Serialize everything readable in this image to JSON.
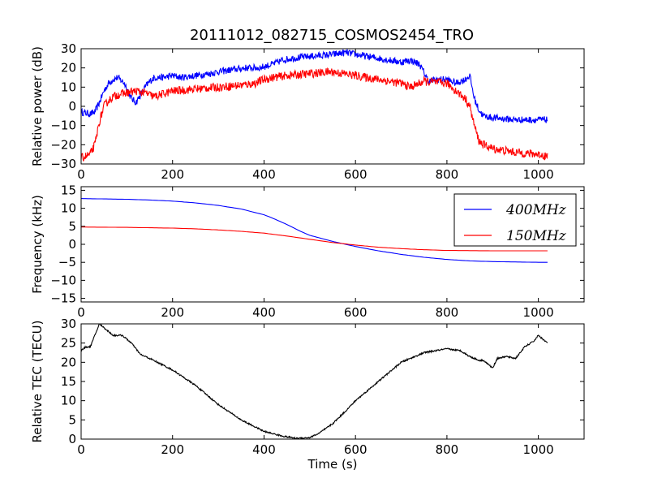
{
  "figure_title": "20111012_082715_COSMOS2454_TRO",
  "chart_data": [
    {
      "type": "line",
      "ylabel": "Relative power (dB)",
      "xlim": [
        0,
        1100
      ],
      "ylim": [
        -30,
        30
      ],
      "xticks": [
        "0",
        "200",
        "400",
        "600",
        "800",
        "1000"
      ],
      "yticks": [
        "−30",
        "−20",
        "−10",
        "0",
        "10",
        "20",
        "30"
      ],
      "series": [
        {
          "color": "#0000ff",
          "noise": 1.8,
          "x": [
            0,
            20,
            30,
            40,
            50,
            60,
            70,
            80,
            95,
            110,
            120,
            130,
            140,
            150,
            160,
            180,
            200,
            220,
            250,
            280,
            300,
            330,
            360,
            390,
            420,
            440,
            460,
            500,
            550,
            580,
            600,
            650,
            700,
            720,
            740,
            760,
            780,
            800,
            820,
            840,
            850,
            860,
            870,
            880,
            900,
            950,
            1000,
            1020
          ],
          "y": [
            -3,
            -4,
            -3,
            2,
            8,
            12,
            14,
            15,
            12,
            4,
            2,
            6,
            10,
            13,
            15,
            15,
            16,
            15,
            16,
            17,
            18,
            19,
            20,
            20,
            22,
            24,
            25,
            26,
            27,
            28,
            27,
            25,
            23,
            24,
            22,
            13,
            14,
            14,
            12,
            14,
            16,
            4,
            -2,
            -5,
            -6,
            -7,
            -7,
            -7
          ]
        },
        {
          "color": "#ff0000",
          "noise": 2.2,
          "x": [
            0,
            20,
            30,
            40,
            50,
            60,
            70,
            80,
            100,
            120,
            140,
            160,
            200,
            250,
            300,
            350,
            380,
            400,
            420,
            450,
            500,
            550,
            600,
            650,
            700,
            720,
            750,
            800,
            820,
            840,
            850,
            860,
            870,
            880,
            900,
            950,
            1000,
            1020
          ],
          "y": [
            -27,
            -25,
            -20,
            -8,
            0,
            3,
            5,
            6,
            7,
            8,
            7,
            5,
            8,
            9,
            10,
            11,
            12,
            14,
            15,
            16,
            17,
            18,
            16,
            14,
            12,
            10,
            13,
            12,
            8,
            4,
            0,
            -10,
            -18,
            -20,
            -22,
            -24,
            -25,
            -26
          ]
        }
      ]
    },
    {
      "type": "line",
      "ylabel": "Frequency (kHz)",
      "xlim": [
        0,
        1100
      ],
      "ylim": [
        -16,
        16
      ],
      "xticks": [
        "0",
        "200",
        "400",
        "600",
        "800",
        "1000"
      ],
      "yticks": [
        "−15",
        "−10",
        "−5",
        "0",
        "5",
        "10",
        "15"
      ],
      "legend": "top-right",
      "series": [
        {
          "name": "400MHz",
          "color": "#0000ff",
          "noise": 0,
          "x": [
            0,
            50,
            100,
            150,
            200,
            250,
            300,
            350,
            400,
            420,
            450,
            480,
            500,
            550,
            600,
            650,
            700,
            750,
            800,
            850,
            900,
            950,
            1000,
            1020
          ],
          "y": [
            12.7,
            12.6,
            12.5,
            12.3,
            12,
            11.5,
            10.8,
            9.8,
            8.2,
            7.2,
            5.5,
            3.6,
            2.5,
            0.8,
            -0.6,
            -1.8,
            -2.8,
            -3.6,
            -4.2,
            -4.6,
            -4.8,
            -4.9,
            -5,
            -5
          ]
        },
        {
          "name": "150MHz",
          "color": "#ff0000",
          "noise": 0,
          "x": [
            0,
            50,
            100,
            150,
            200,
            250,
            300,
            350,
            400,
            450,
            500,
            550,
            600,
            650,
            700,
            750,
            800,
            850,
            900,
            950,
            1000,
            1020
          ],
          "y": [
            4.8,
            4.75,
            4.7,
            4.6,
            4.5,
            4.3,
            4,
            3.6,
            3.1,
            2.3,
            1.4,
            0.5,
            -0.2,
            -0.8,
            -1.2,
            -1.5,
            -1.7,
            -1.75,
            -1.8,
            -1.8,
            -1.8,
            -1.8
          ]
        }
      ]
    },
    {
      "type": "line",
      "ylabel": "Relative TEC (TECU)",
      "xlabel": "Time (s)",
      "xlim": [
        0,
        1100
      ],
      "ylim": [
        0,
        30
      ],
      "xticks": [
        "0",
        "200",
        "400",
        "600",
        "800",
        "1000"
      ],
      "yticks": [
        "0",
        "5",
        "10",
        "15",
        "20",
        "25",
        "30"
      ],
      "series": [
        {
          "color": "#000000",
          "noise": 0.2,
          "x": [
            0,
            10,
            20,
            30,
            40,
            50,
            60,
            70,
            90,
            110,
            130,
            150,
            200,
            250,
            300,
            350,
            400,
            440,
            470,
            500,
            520,
            550,
            580,
            600,
            650,
            700,
            750,
            800,
            830,
            850,
            870,
            880,
            890,
            900,
            910,
            930,
            950,
            970,
            990,
            1000,
            1020
          ],
          "y": [
            23,
            24,
            24,
            27,
            30,
            29,
            28,
            27,
            27,
            25,
            22,
            21,
            18,
            14,
            9,
            5,
            2,
            0.8,
            0.2,
            0.4,
            1.5,
            4,
            7.5,
            10,
            15,
            20,
            22.5,
            23.5,
            23,
            21.5,
            20.5,
            20.5,
            19.5,
            18.5,
            21,
            21.5,
            21,
            24,
            25.5,
            27,
            25
          ]
        }
      ]
    }
  ]
}
